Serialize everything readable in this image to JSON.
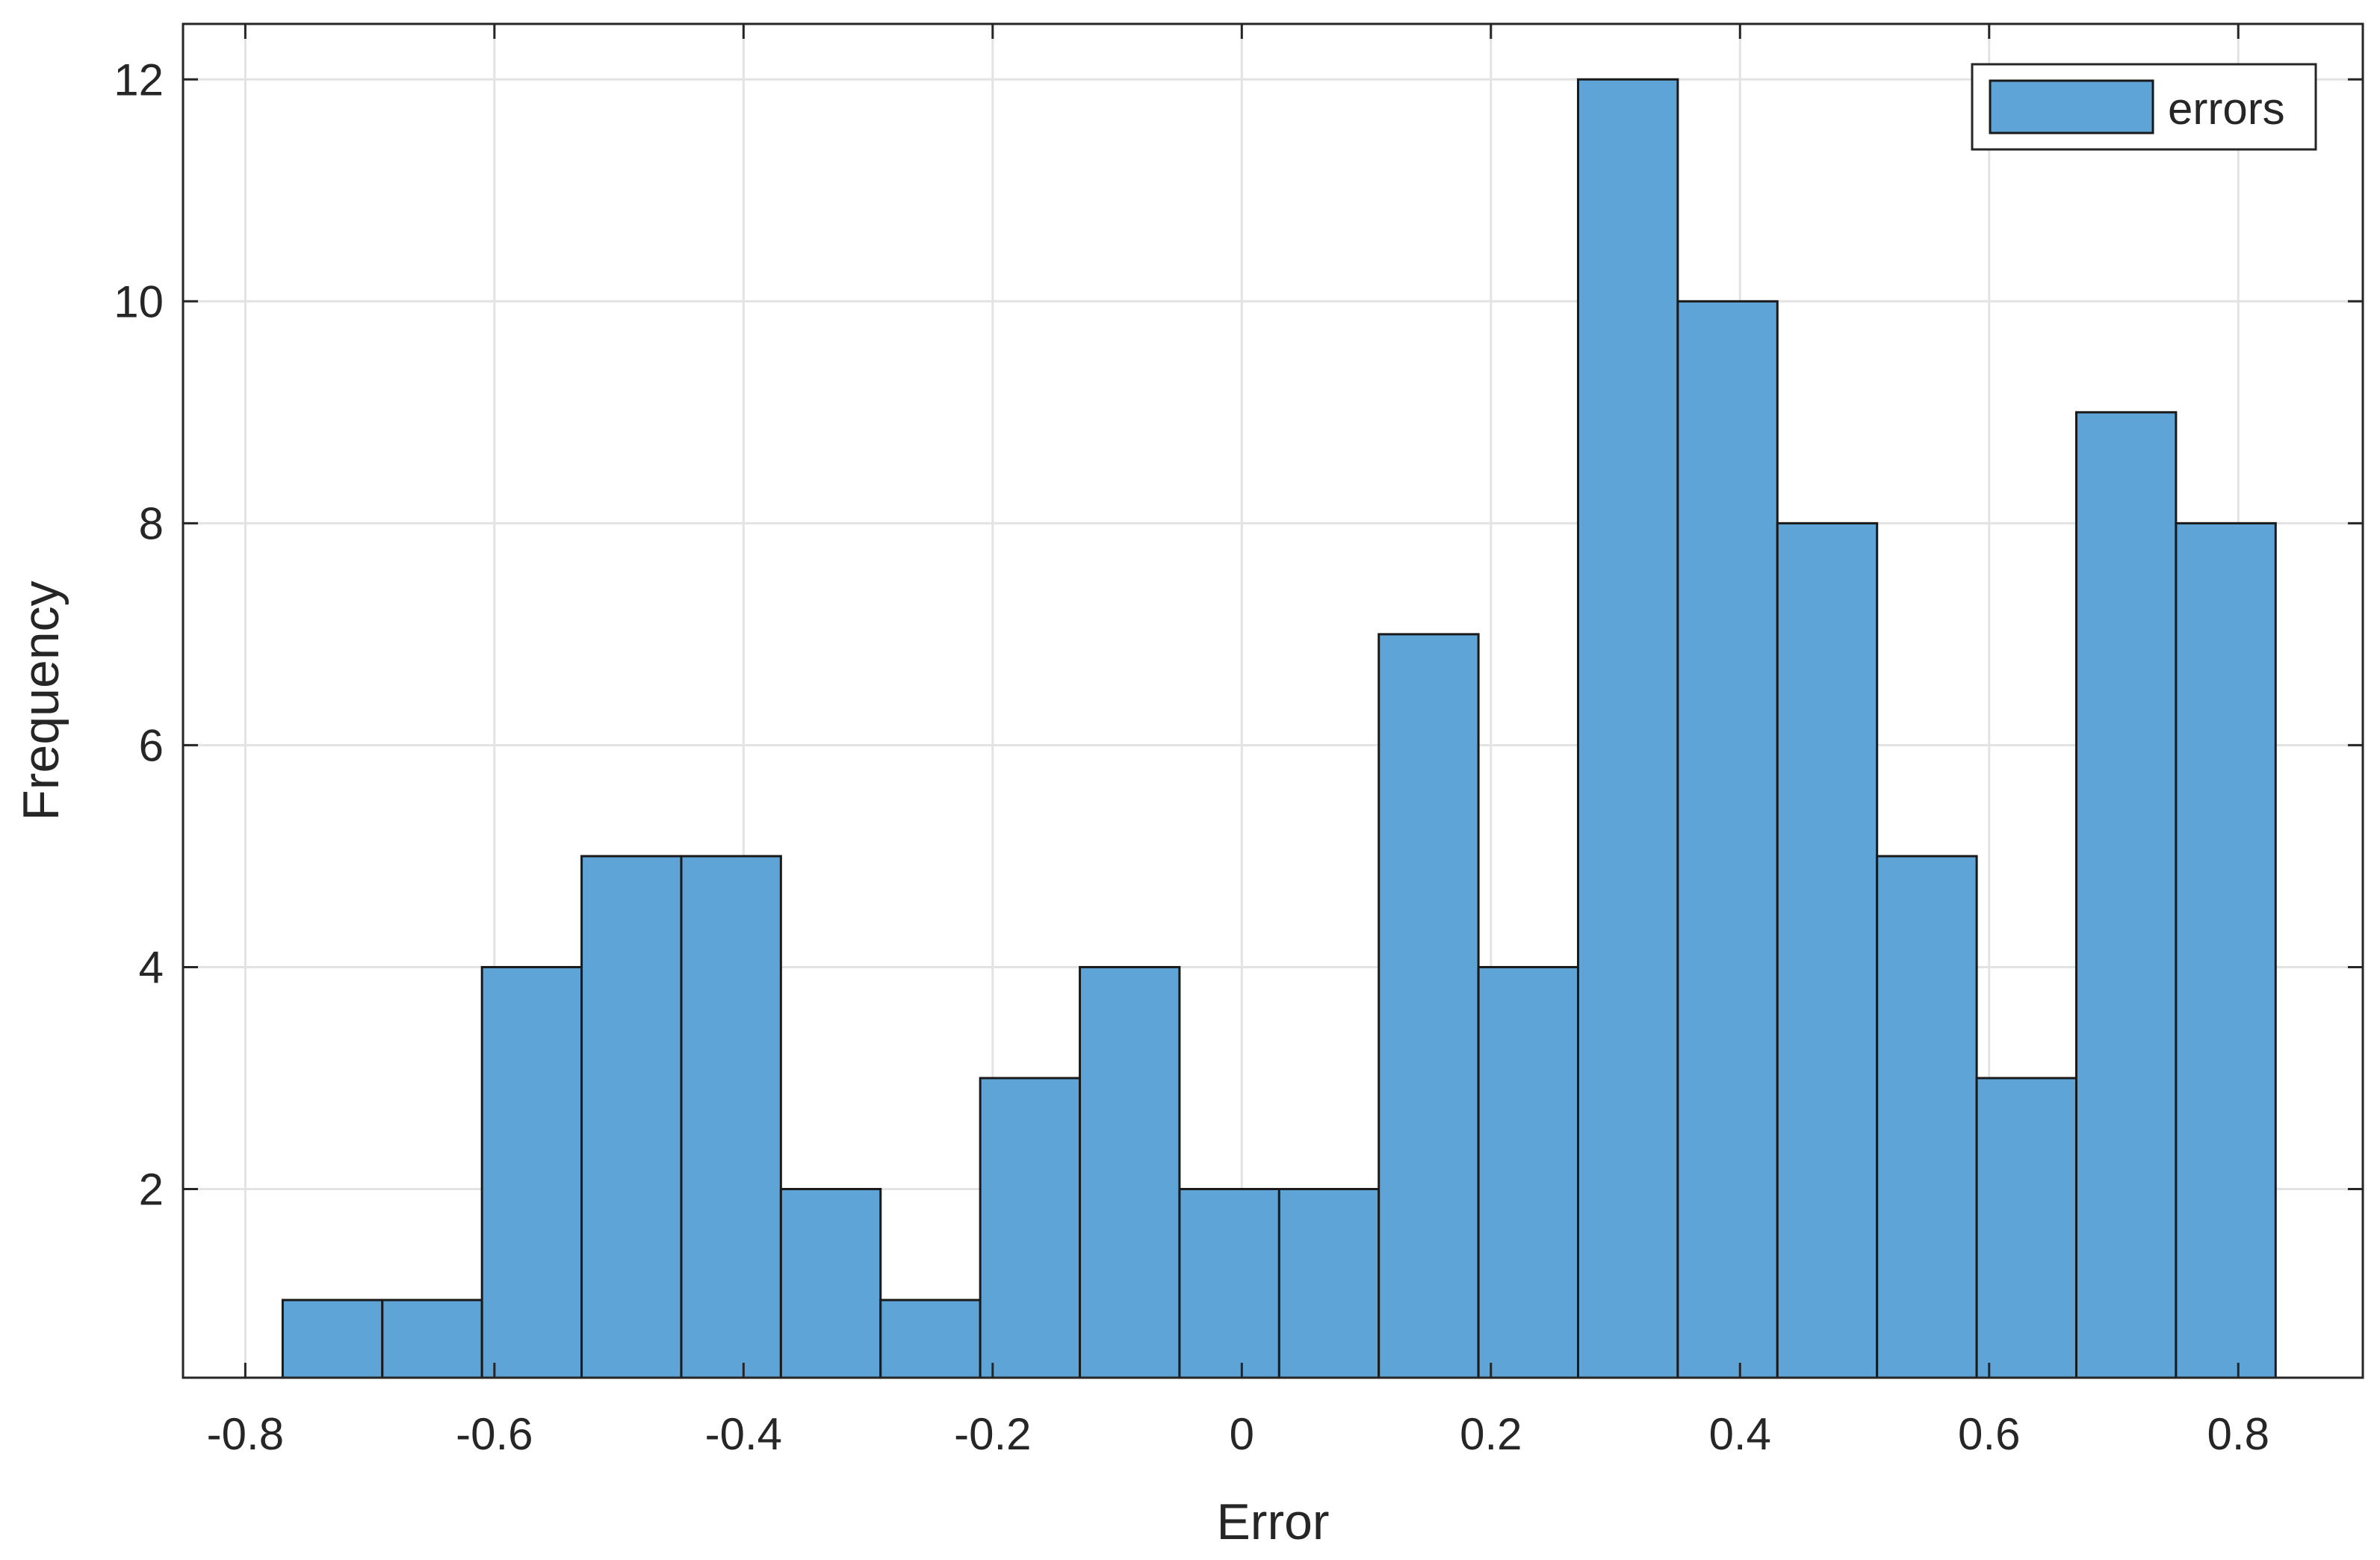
{
  "chart_data": {
    "type": "bar",
    "subtype": "histogram",
    "title": "",
    "xlabel": "Error",
    "ylabel": "Frequency",
    "xlim": [
      -0.85,
      0.9
    ],
    "ylim": [
      0.3,
      12.5
    ],
    "xticks": [
      -0.8,
      -0.6,
      -0.4,
      -0.2,
      0,
      0.2,
      0.4,
      0.6,
      0.8
    ],
    "xtick_labels": [
      "-0.8",
      "-0.6",
      "-0.4",
      "-0.2",
      "0",
      "0.2",
      "0.4",
      "0.6",
      "0.8"
    ],
    "yticks": [
      2,
      4,
      6,
      8,
      10,
      12
    ],
    "ytick_labels": [
      "2",
      "4",
      "6",
      "8",
      "10",
      "12"
    ],
    "bin_edges": [
      -0.77,
      -0.69,
      -0.61,
      -0.53,
      -0.45,
      -0.37,
      -0.29,
      -0.21,
      -0.13,
      -0.05,
      0.03,
      0.11,
      0.19,
      0.27,
      0.35,
      0.43,
      0.51,
      0.59,
      0.67,
      0.75,
      0.83
    ],
    "values": [
      1,
      1,
      4,
      5,
      5,
      2,
      1,
      3,
      4,
      2,
      2,
      7,
      4,
      12,
      10,
      8,
      5,
      3,
      9,
      8
    ],
    "series": [
      {
        "name": "errors",
        "color": "#5fa4d6"
      }
    ],
    "grid": true,
    "legend_position": "top-right",
    "bar_color": "#5fa4d6",
    "edge_color": "#1a1a1a"
  }
}
